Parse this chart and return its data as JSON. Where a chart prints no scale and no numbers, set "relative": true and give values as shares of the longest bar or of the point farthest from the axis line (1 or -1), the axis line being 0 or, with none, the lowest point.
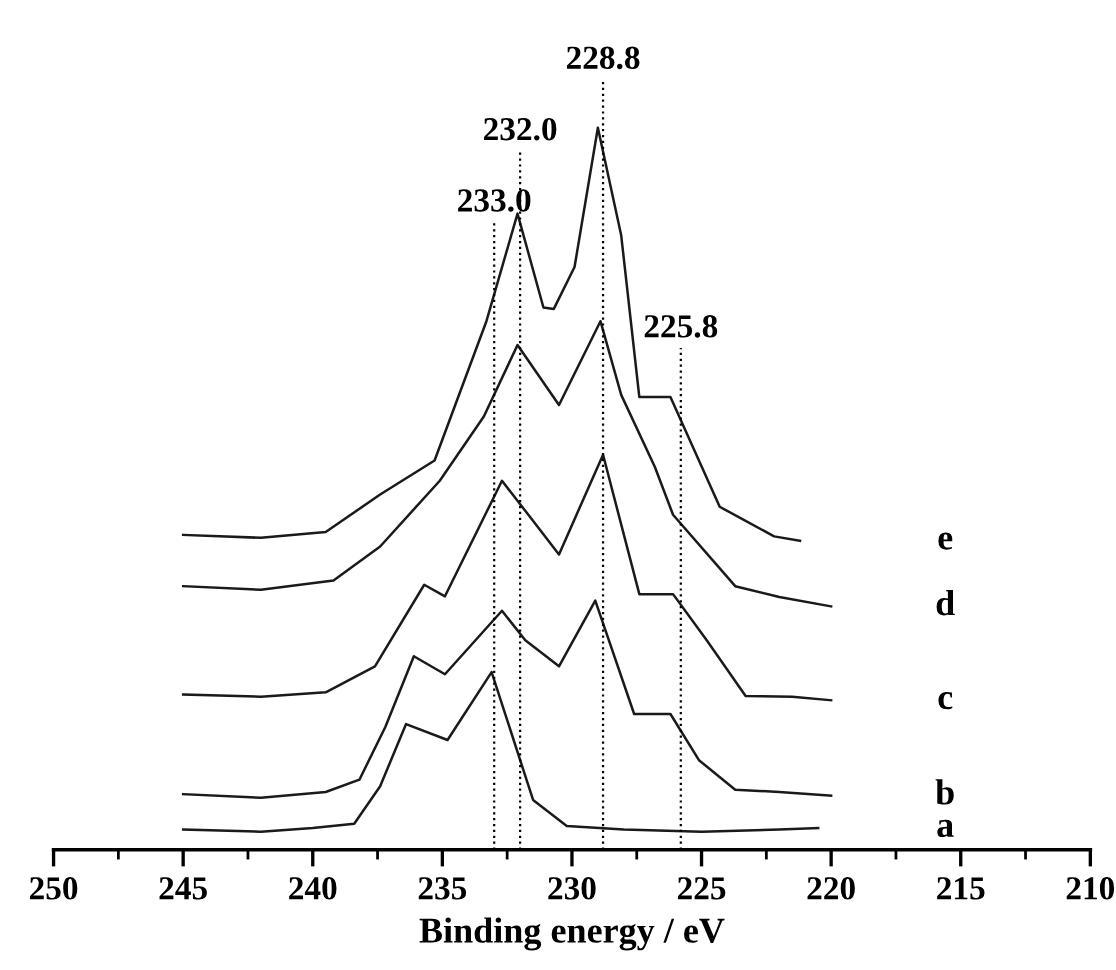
{
  "chart_data": {
    "type": "line",
    "relative": true,
    "xlabel": "Binding energy / eV",
    "xlim": [
      250,
      210
    ],
    "xticks": [
      250,
      245,
      240,
      235,
      230,
      225,
      220,
      215,
      210
    ],
    "grid": false,
    "legend": false,
    "marker": "none",
    "line_style": "solid",
    "ref_lines": [
      {
        "axis": "x",
        "value": 233.0,
        "label": "233.0",
        "line_style": "dotted",
        "color": "#000000"
      },
      {
        "axis": "x",
        "value": 232.0,
        "label": "232.0",
        "line_style": "dotted",
        "color": "#000000"
      },
      {
        "axis": "x",
        "value": 228.8,
        "label": "228.8",
        "line_style": "dotted",
        "color": "#000000"
      },
      {
        "axis": "x",
        "value": 225.8,
        "label": "225.8",
        "line_style": "dotted",
        "color": "#000000"
      }
    ],
    "series": [
      {
        "name": "a",
        "color": "#1a1a1a",
        "x": [
          245,
          242,
          240,
          238.4,
          237.4,
          236.4,
          234.8,
          233.1,
          231.5,
          230.2,
          228,
          225,
          222,
          220.5
        ],
        "values": [
          0.028,
          0.025,
          0.03,
          0.036,
          0.088,
          0.174,
          0.152,
          0.246,
          0.069,
          0.033,
          0.028,
          0.025,
          0.028,
          0.03
        ]
      },
      {
        "name": "b",
        "color": "#1a1a1a",
        "x": [
          245,
          242,
          239.5,
          238.2,
          237.2,
          236.1,
          234.9,
          232.7,
          231.8,
          230.5,
          229.1,
          227.6,
          226.2,
          225.1,
          223.7,
          222,
          220
        ],
        "values": [
          0.077,
          0.072,
          0.08,
          0.097,
          0.17,
          0.268,
          0.243,
          0.331,
          0.29,
          0.254,
          0.345,
          0.188,
          0.188,
          0.124,
          0.083,
          0.08,
          0.075
        ]
      },
      {
        "name": "c",
        "color": "#1a1a1a",
        "x": [
          245,
          242,
          239.5,
          237.6,
          235.7,
          234.9,
          232.7,
          231.6,
          230.5,
          228.8,
          227.4,
          226.1,
          224.8,
          223.3,
          221.5,
          220
        ],
        "values": [
          0.215,
          0.212,
          0.218,
          0.254,
          0.367,
          0.351,
          0.511,
          0.46,
          0.409,
          0.547,
          0.354,
          0.354,
          0.29,
          0.213,
          0.212,
          0.207
        ]
      },
      {
        "name": "d",
        "color": "#1a1a1a",
        "x": [
          245,
          242,
          239.2,
          237.4,
          235.1,
          233.4,
          232.1,
          230.5,
          228.9,
          228.1,
          226.8,
          226.1,
          223.7,
          222,
          220
        ],
        "values": [
          0.365,
          0.36,
          0.373,
          0.42,
          0.511,
          0.6,
          0.699,
          0.616,
          0.732,
          0.63,
          0.53,
          0.464,
          0.365,
          0.35,
          0.337
        ]
      },
      {
        "name": "e",
        "color": "#1a1a1a",
        "x": [
          245,
          242,
          239.5,
          237.4,
          235.3,
          233.3,
          232.1,
          231.1,
          230.7,
          229.9,
          229.0,
          228.1,
          227.4,
          226.2,
          224.3,
          222.2,
          221.2
        ],
        "values": [
          0.436,
          0.432,
          0.44,
          0.492,
          0.539,
          0.732,
          0.881,
          0.751,
          0.749,
          0.807,
          1.0,
          0.851,
          0.627,
          0.627,
          0.475,
          0.434,
          0.428
        ]
      }
    ]
  }
}
